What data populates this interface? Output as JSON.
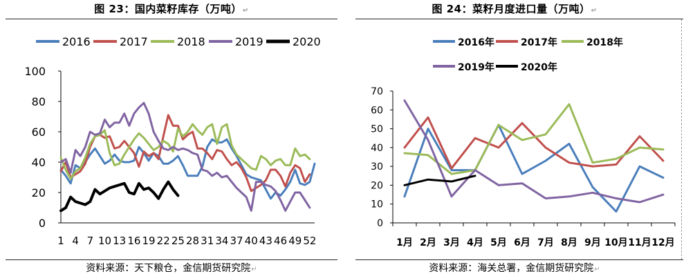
{
  "charts": [
    {
      "title": "图 23：国内菜籽库存（万吨）",
      "source": "资料来源：天下粮仓，金信期货研究院"
    },
    {
      "title": "图 24：菜籽月度进口量（万吨）",
      "source": "资料来源：海关总署，金信期货研究院"
    }
  ],
  "chart_data": [
    {
      "type": "line",
      "title": "图 23：国内菜籽库存（万吨）",
      "xlabel": "",
      "ylabel": "",
      "ylim": [
        0,
        100
      ],
      "yticks": [
        0,
        20,
        40,
        60,
        80,
        100
      ],
      "x": [
        1,
        2,
        3,
        4,
        5,
        6,
        7,
        8,
        9,
        10,
        11,
        12,
        13,
        14,
        15,
        16,
        17,
        18,
        19,
        20,
        21,
        22,
        23,
        24,
        25,
        26,
        27,
        28,
        29,
        30,
        31,
        32,
        33,
        34,
        35,
        36,
        37,
        38,
        39,
        40,
        41,
        42,
        43,
        44,
        45,
        46,
        47,
        48,
        49,
        50,
        51,
        52,
        53
      ],
      "xticks": [
        1,
        4,
        7,
        10,
        13,
        16,
        19,
        22,
        25,
        28,
        31,
        34,
        37,
        40,
        43,
        46,
        49,
        52
      ],
      "legend_position": "top",
      "grid": false,
      "series": [
        {
          "name": "2016",
          "color": "#4a7ebb",
          "values": [
            35,
            31,
            26,
            38,
            36,
            40,
            45,
            49,
            44,
            39,
            41,
            45,
            41,
            40,
            40,
            41,
            50,
            46,
            41,
            46,
            44,
            39,
            39,
            41,
            44,
            38,
            31,
            31,
            31,
            37,
            50,
            55,
            53,
            53,
            55,
            49,
            44,
            38,
            32,
            30,
            29,
            28,
            22,
            16,
            20,
            18,
            22,
            27,
            35,
            26,
            25,
            27,
            39
          ]
        },
        {
          "name": "2017",
          "color": "#c0504d",
          "values": [
            34,
            40,
            30,
            32,
            34,
            39,
            50,
            57,
            58,
            56,
            57,
            49,
            50,
            54,
            50,
            46,
            37,
            47,
            44,
            46,
            42,
            57,
            71,
            64,
            64,
            55,
            58,
            60,
            49,
            49,
            46,
            42,
            48,
            47,
            42,
            38,
            40,
            36,
            30,
            21,
            23,
            25,
            28,
            35,
            35,
            31,
            24,
            33,
            38,
            36,
            27,
            32,
            null
          ]
        },
        {
          "name": "2018",
          "color": "#9bbb59",
          "values": [
            43,
            35,
            29,
            34,
            36,
            43,
            52,
            57,
            58,
            61,
            46,
            38,
            39,
            45,
            50,
            55,
            59,
            56,
            52,
            48,
            50,
            54,
            52,
            47,
            62,
            57,
            60,
            65,
            61,
            58,
            63,
            65,
            52,
            63,
            65,
            51,
            45,
            42,
            39,
            36,
            35,
            44,
            42,
            38,
            41,
            42,
            38,
            38,
            49,
            44,
            45,
            42,
            null
          ]
        },
        {
          "name": "2019",
          "color": "#8064a2",
          "values": [
            40,
            42,
            33,
            48,
            44,
            50,
            60,
            58,
            59,
            68,
            63,
            66,
            66,
            72,
            64,
            72,
            76,
            79,
            72,
            60,
            54,
            49,
            48,
            50,
            48,
            49,
            48,
            46,
            45,
            35,
            34,
            31,
            33,
            30,
            31,
            27,
            23,
            20,
            17,
            8,
            27,
            27,
            25,
            24,
            21,
            15,
            8,
            14,
            20,
            20,
            15,
            10,
            null
          ]
        },
        {
          "name": "2020",
          "color": "#000000",
          "values": [
            8,
            10,
            17,
            14,
            13,
            12,
            14,
            22,
            19,
            21,
            23,
            24,
            25,
            26,
            20,
            19,
            26,
            22,
            23,
            20,
            16,
            22,
            27,
            22,
            18,
            null,
            null,
            null,
            null,
            null,
            null,
            null,
            null,
            null,
            null,
            null,
            null,
            null,
            null,
            null,
            null,
            null,
            null,
            null,
            null,
            null,
            null,
            null,
            null,
            null,
            null,
            null,
            null
          ]
        }
      ]
    },
    {
      "type": "line",
      "title": "图 24：菜籽月度进口量（万吨）",
      "xlabel": "",
      "ylabel": "",
      "ylim": [
        0,
        70
      ],
      "yticks": [
        0,
        10,
        20,
        30,
        40,
        50,
        60,
        70
      ],
      "categories": [
        "1月",
        "2月",
        "3月",
        "4月",
        "5月",
        "6月",
        "7月",
        "8月",
        "9月",
        "10月",
        "11月",
        "12月"
      ],
      "legend_position": "top",
      "grid": false,
      "series": [
        {
          "name": "2016年",
          "color": "#4a7ebb",
          "values": [
            14,
            50,
            28,
            28,
            52,
            26,
            33,
            42,
            19,
            6,
            30,
            24
          ]
        },
        {
          "name": "2017年",
          "color": "#c0504d",
          "values": [
            40,
            56,
            29,
            45,
            40,
            53,
            40,
            32,
            30,
            31,
            46,
            33
          ]
        },
        {
          "name": "2018年",
          "color": "#9bbb59",
          "values": [
            37,
            36,
            26,
            28,
            52,
            44,
            47,
            63,
            32,
            34,
            40,
            39
          ]
        },
        {
          "name": "2019年",
          "color": "#8064a2",
          "values": [
            65,
            44,
            14,
            28,
            20,
            21,
            13,
            14,
            16,
            13,
            11,
            15
          ]
        },
        {
          "name": "2020年",
          "color": "#000000",
          "values": [
            20,
            23,
            22,
            25,
            null,
            null,
            null,
            null,
            null,
            null,
            null,
            null
          ]
        }
      ]
    }
  ]
}
